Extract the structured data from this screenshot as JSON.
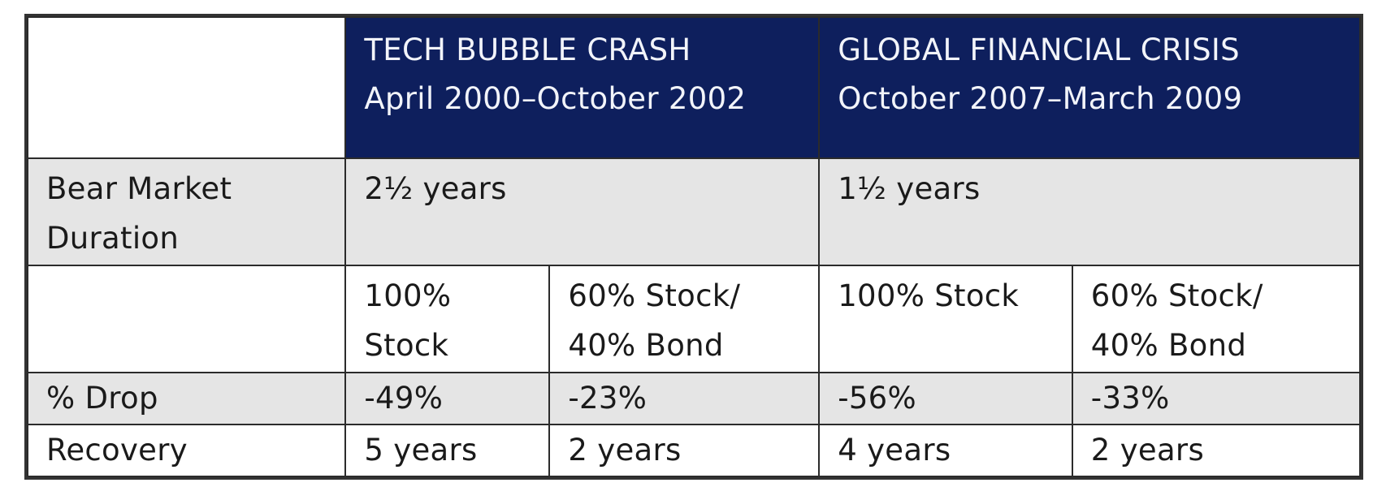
{
  "header": {
    "tech": {
      "title": "TECH BUBBLE CRASH",
      "period": "April 2000–October 2002"
    },
    "gfc": {
      "title": "GLOBAL FINANCIAL CRISIS",
      "period": "October 2007–March 2009"
    }
  },
  "duration": {
    "label_line1": "Bear Market",
    "label_line2": "Duration",
    "tech": "2½ years",
    "gfc": "1½ years"
  },
  "portfolios": {
    "tech_stock_line1": "100%",
    "tech_stock_line2": "Stock",
    "tech_mix_line1": "60% Stock/",
    "tech_mix_line2": "40% Bond",
    "gfc_stock": "100% Stock",
    "gfc_mix_line1": "60% Stock/",
    "gfc_mix_line2": "40% Bond"
  },
  "drop": {
    "label": "% Drop",
    "tech_stock": "-49%",
    "tech_mix": "-23%",
    "gfc_stock": "-56%",
    "gfc_mix": "-33%"
  },
  "recovery": {
    "label": "Recovery",
    "tech_stock": "5 years",
    "tech_mix": "2 years",
    "gfc_stock": "4 years",
    "gfc_mix": "2 years"
  }
}
